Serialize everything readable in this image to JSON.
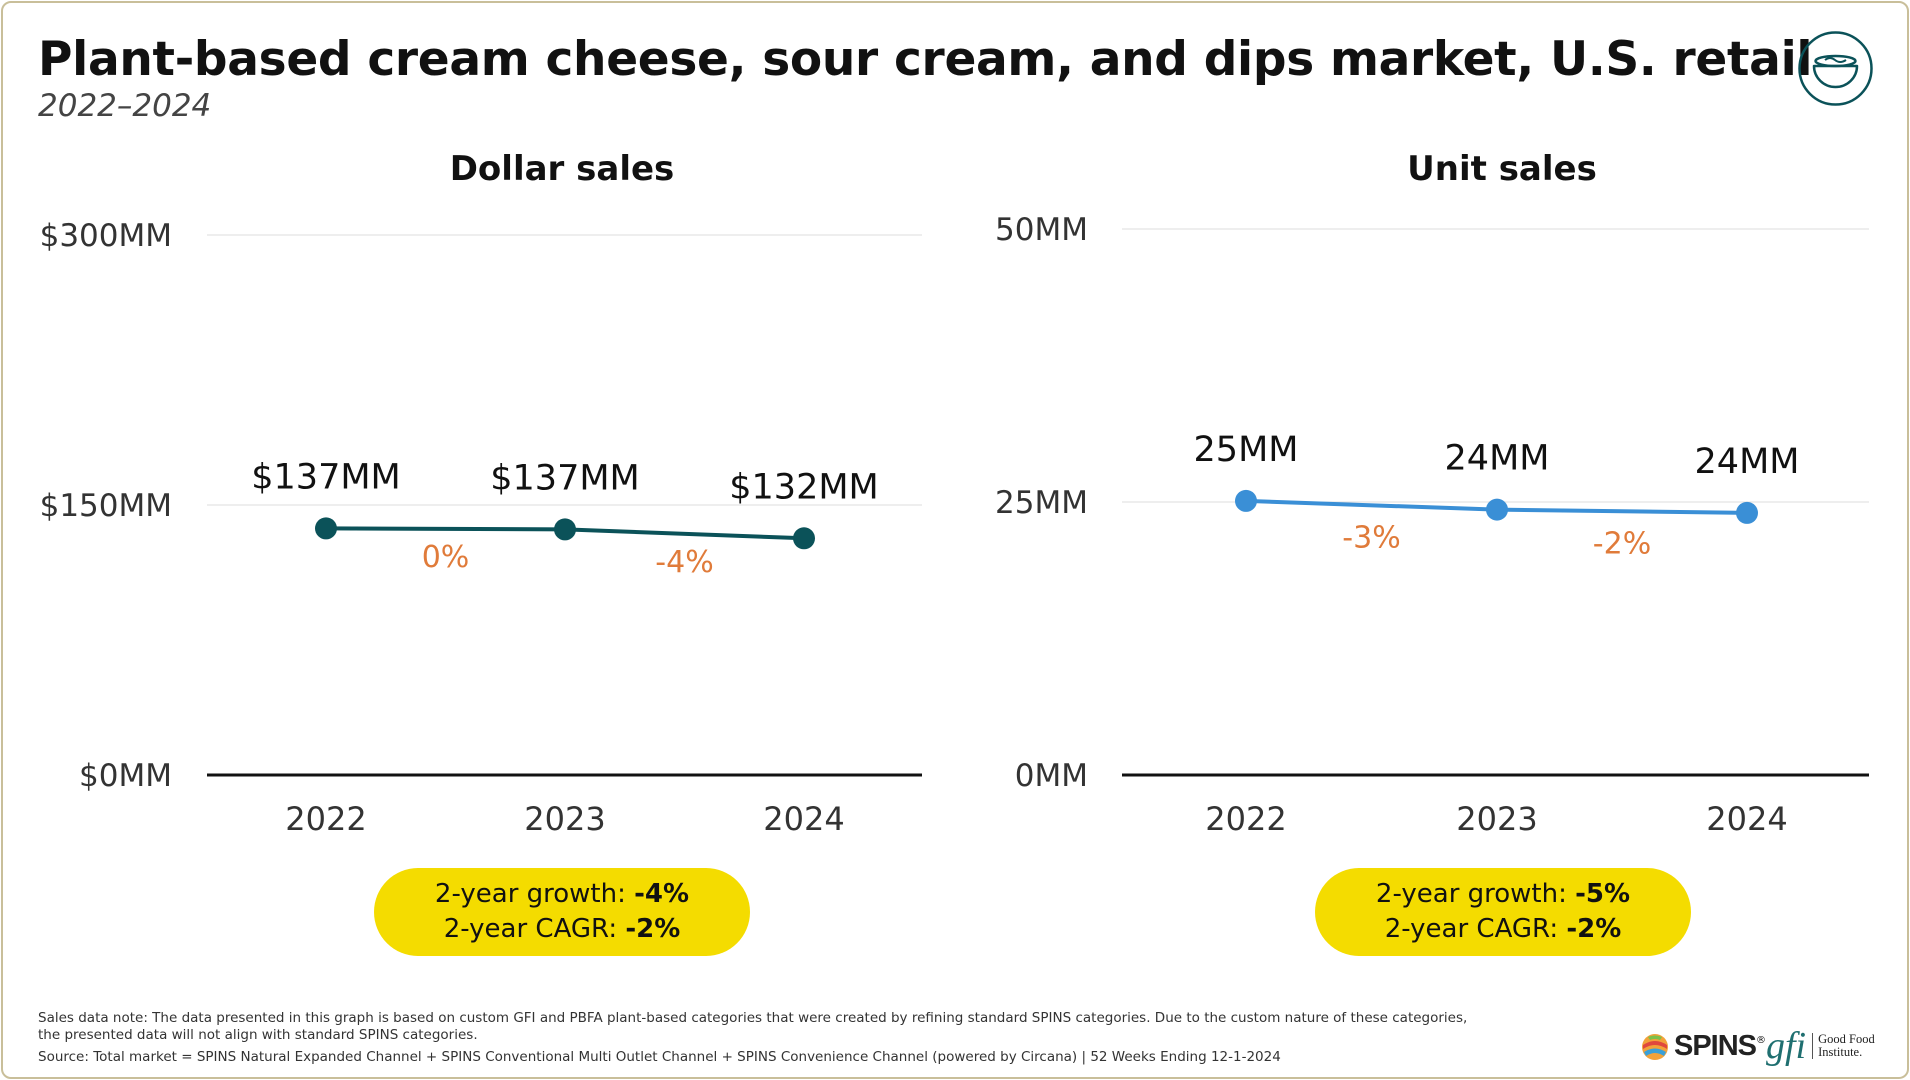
{
  "title": "Plant-based cream cheese, sour cream, and dips market, U.S. retail",
  "subtitle": "2022–2024",
  "icon": "bowl-icon",
  "colors": {
    "dollar_series": "#0b5259",
    "unit_series": "#3a8fd6",
    "growth_label": "#e07b3a",
    "badge": "#f4dc00",
    "axis": "#111111",
    "grid": "#dddddd"
  },
  "chart_data": [
    {
      "type": "line",
      "title": "Dollar sales",
      "categories": [
        "2022",
        "2023",
        "2024"
      ],
      "series": [
        {
          "name": "Dollar sales",
          "values": [
            137,
            137,
            132
          ]
        }
      ],
      "value_labels": [
        "$137MM",
        "$137MM",
        "$132MM"
      ],
      "growth_labels": [
        "0%",
        "-4%"
      ],
      "y_ticks": [
        0,
        150,
        300
      ],
      "y_tick_labels": [
        "$0MM",
        "$150MM",
        "$300MM"
      ],
      "ylim": [
        0,
        300
      ],
      "unit": "$MM",
      "xlabel": "",
      "ylabel": "",
      "grid": true,
      "summary": {
        "growth_label": "2-year growth:",
        "growth_value": "-4%",
        "cagr_label": "2-year CAGR:",
        "cagr_value": "-2%"
      }
    },
    {
      "type": "line",
      "title": "Unit sales",
      "categories": [
        "2022",
        "2023",
        "2024"
      ],
      "series": [
        {
          "name": "Unit sales",
          "values": [
            25,
            24,
            24
          ]
        }
      ],
      "value_labels": [
        "25MM",
        "24MM",
        "24MM"
      ],
      "growth_labels": [
        "-3%",
        "-2%"
      ],
      "y_ticks": [
        0,
        25,
        50
      ],
      "y_tick_labels": [
        "0MM",
        "25MM",
        "50MM"
      ],
      "ylim": [
        0,
        50
      ],
      "unit": "MM",
      "xlabel": "",
      "ylabel": "",
      "grid": true,
      "summary": {
        "growth_label": "2-year growth:",
        "growth_value": "-5%",
        "cagr_label": "2-year CAGR:",
        "cagr_value": "-2%"
      }
    }
  ],
  "notes": {
    "sales_note_line1": "Sales data note: The data presented in this graph is based on custom GFI and PBFA plant-based categories that were created by refining standard SPINS categories. Due to the custom nature of these categories,",
    "sales_note_line2": "the presented data will not align with standard SPINS categories.",
    "source": "Source: Total market = SPINS Natural Expanded Channel + SPINS Conventional Multi Outlet Channel + SPINS Convenience Channel (powered by Circana) | 52 Weeks Ending 12-1-2024"
  },
  "logos": {
    "spins": "SPINS",
    "spins_mark": "®",
    "gfi": "gfi",
    "gfi_line1": "Good Food",
    "gfi_line2": "Institute."
  }
}
